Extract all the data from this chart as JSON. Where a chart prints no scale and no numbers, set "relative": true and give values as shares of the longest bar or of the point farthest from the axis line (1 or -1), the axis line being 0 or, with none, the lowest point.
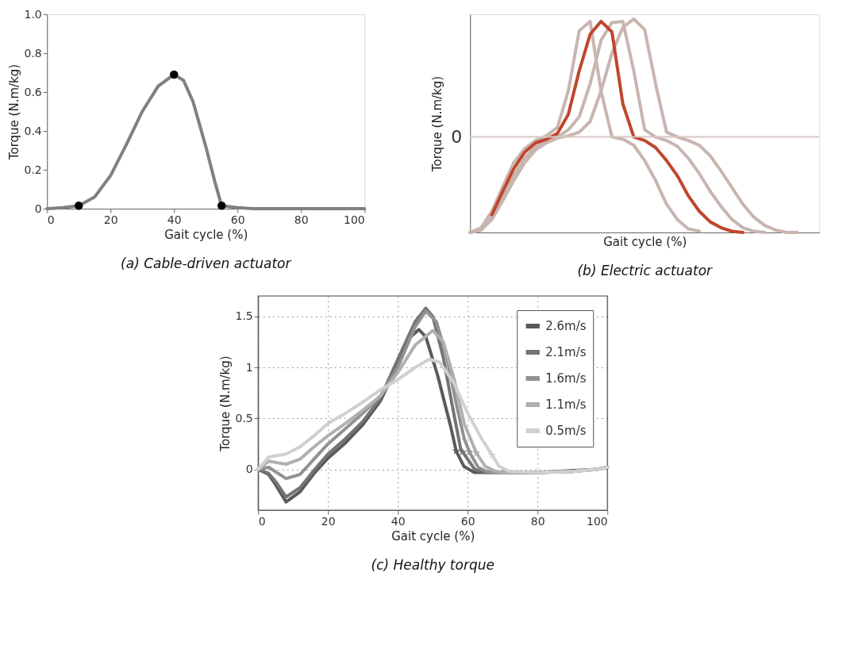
{
  "chart_data": [
    {
      "type": "line",
      "title": "(a) Cable-driven actuator",
      "xlabel": "Gait cycle (%)",
      "ylabel": "Torque (N.m/kg)",
      "xlim": [
        0,
        100
      ],
      "ylim": [
        0,
        1.0
      ],
      "xticks": [
        0,
        20,
        40,
        60,
        80,
        100
      ],
      "yticks": [
        0,
        0.2,
        0.4,
        0.6,
        0.8,
        {
          "value": 1.0,
          "label": "1.0"
        }
      ],
      "series": [
        {
          "color": "#808080",
          "x": [
            0,
            5,
            10,
            15,
            20,
            25,
            30,
            35,
            40,
            43,
            46,
            50,
            53,
            55,
            60,
            65,
            80,
            100
          ],
          "values": [
            0,
            0.005,
            0.015,
            0.06,
            0.17,
            0.33,
            0.5,
            0.63,
            0.69,
            0.66,
            0.55,
            0.32,
            0.13,
            0.015,
            0.005,
            0,
            0,
            0
          ]
        },
        {
          "type": "scatter",
          "marker": "circle",
          "color": "#000000",
          "x": [
            10,
            40,
            55
          ],
          "values": [
            0.015,
            0.69,
            0.015
          ]
        }
      ]
    },
    {
      "type": "line",
      "title": "(b) Electric actuator",
      "xlabel": "Gait cycle (%)",
      "ylabel": "Torque (N.m/kg)",
      "relative": true,
      "tick_labels": false,
      "categories": [
        null,
        null,
        null,
        null,
        null,
        null,
        null,
        null,
        null,
        null,
        null,
        null,
        null,
        null,
        null,
        null,
        null,
        null,
        null,
        null,
        null,
        null,
        null,
        null,
        null,
        null,
        null,
        null,
        null,
        null,
        null,
        null,
        null
      ],
      "ref_lines": [
        {
          "axis": "y",
          "value": 0,
          "label": "0",
          "color": "#d8c8c4"
        }
      ],
      "series": [
        {
          "color": "#c9b5b0",
          "values": [
            -0.81,
            -0.77,
            -0.63,
            -0.42,
            -0.22,
            -0.1,
            -0.03,
            0.01,
            0.08,
            0.39,
            0.9,
            0.98,
            0.39,
            0.0,
            -0.02,
            -0.07,
            -0.2,
            -0.37,
            -0.57,
            -0.7,
            -0.78,
            -0.8,
            null,
            null,
            null,
            null,
            null,
            null,
            null,
            null,
            null,
            null,
            null
          ]
        },
        {
          "color": "#c9b5b0",
          "values": [
            -0.81,
            -0.79,
            -0.68,
            -0.5,
            -0.33,
            -0.18,
            -0.08,
            -0.03,
            0.0,
            0.06,
            0.17,
            0.45,
            0.82,
            0.97,
            0.98,
            0.56,
            0.06,
            0.0,
            -0.03,
            -0.08,
            -0.18,
            -0.31,
            -0.46,
            -0.59,
            -0.7,
            -0.77,
            -0.8,
            -0.81,
            null,
            null,
            null,
            null,
            null
          ]
        },
        {
          "color": "#c9b5b0",
          "values": [
            -0.81,
            -0.79,
            -0.7,
            -0.54,
            -0.37,
            -0.22,
            -0.11,
            -0.05,
            -0.01,
            0.01,
            0.04,
            0.13,
            0.39,
            0.71,
            0.93,
            1.0,
            0.91,
            0.45,
            0.04,
            0.0,
            -0.03,
            -0.07,
            -0.16,
            -0.29,
            -0.43,
            -0.57,
            -0.68,
            -0.75,
            -0.79,
            -0.81,
            -0.81,
            null,
            null
          ]
        },
        {
          "color": "#c0462b",
          "values": [
            null,
            null,
            -0.66,
            -0.46,
            -0.27,
            -0.13,
            -0.05,
            -0.02,
            0.03,
            0.19,
            0.56,
            0.87,
            0.98,
            0.89,
            0.28,
            0.0,
            -0.03,
            -0.09,
            -0.2,
            -0.33,
            -0.5,
            -0.63,
            -0.72,
            -0.77,
            -0.8,
            -0.81,
            null,
            null,
            null,
            null,
            null,
            null,
            null
          ]
        }
      ]
    },
    {
      "type": "line",
      "title": "(c) Healthy torque",
      "xlabel": "Gait cycle (%)",
      "ylabel": "Torque (N.m/kg)",
      "xlim": [
        0,
        100
      ],
      "ylim": [
        -0.4,
        1.7
      ],
      "xticks": [
        0,
        20,
        40,
        60,
        80,
        100
      ],
      "yticks": [
        0,
        0.5,
        1,
        1.5
      ],
      "grid": true,
      "legend": "top right",
      "series": [
        {
          "name": "2.6m/s",
          "color": "#5a5a5a",
          "x": [
            0,
            3,
            5,
            8,
            12,
            16,
            20,
            25,
            30,
            35,
            40,
            43,
            46,
            48,
            51.4,
            55.2,
            56.7,
            58.9,
            61.9,
            70,
            80,
            97,
            100
          ],
          "values": [
            0,
            -0.05,
            -0.15,
            -0.32,
            -0.22,
            -0.04,
            0.11,
            0.26,
            0.44,
            0.67,
            1.03,
            1.28,
            1.37,
            1.3,
            0.92,
            0.41,
            0.18,
            0.03,
            -0.03,
            -0.03,
            -0.03,
            0,
            0.02
          ]
        },
        {
          "name": "2.1m/s",
          "color": "#747474",
          "x": [
            0,
            3,
            5,
            8,
            12,
            16,
            20,
            25,
            30,
            35,
            40,
            45,
            48,
            50,
            53,
            56,
            58,
            62,
            65,
            70,
            80,
            90,
            97,
            100
          ],
          "values": [
            0,
            -0.04,
            -0.12,
            -0.27,
            -0.18,
            -0.01,
            0.15,
            0.3,
            0.47,
            0.7,
            1.08,
            1.45,
            1.58,
            1.5,
            1.1,
            0.55,
            0.2,
            0.0,
            -0.03,
            -0.03,
            -0.03,
            -0.02,
            0,
            0.02
          ]
        },
        {
          "name": "1.6m/s",
          "color": "#929292",
          "x": [
            0,
            3,
            8,
            12,
            16,
            20,
            25,
            30,
            35,
            40,
            45,
            48,
            51,
            54,
            57,
            59,
            60.5,
            63,
            66,
            70,
            80,
            90,
            97,
            100
          ],
          "values": [
            0,
            0.02,
            -0.09,
            -0.05,
            0.1,
            0.25,
            0.4,
            0.55,
            0.72,
            1.0,
            1.4,
            1.55,
            1.45,
            1.1,
            0.6,
            0.3,
            0.17,
            0.02,
            -0.03,
            -0.03,
            -0.03,
            -0.02,
            0,
            0.02
          ]
        },
        {
          "name": "1.1m/s",
          "color": "#b0b0b0",
          "x": [
            0,
            3,
            8,
            12,
            16,
            20,
            25,
            30,
            35,
            40,
            45,
            50,
            53,
            56,
            59,
            62.5,
            65,
            68,
            70,
            80,
            90,
            97,
            100
          ],
          "values": [
            0,
            0.08,
            0.05,
            0.1,
            0.22,
            0.33,
            0.45,
            0.58,
            0.72,
            0.95,
            1.22,
            1.36,
            1.25,
            0.9,
            0.45,
            0.16,
            0.03,
            -0.02,
            -0.03,
            -0.03,
            -0.02,
            0,
            0.02
          ]
        },
        {
          "name": "0.5m/s",
          "color": "#d0d0d0",
          "x": [
            0,
            3,
            8,
            12,
            16,
            20,
            25,
            30,
            35,
            40,
            45,
            49,
            52,
            56,
            60,
            64,
            67,
            69,
            72,
            80,
            90,
            97,
            100
          ],
          "values": [
            0,
            0.12,
            0.15,
            0.22,
            0.33,
            0.45,
            0.55,
            0.66,
            0.78,
            0.88,
            1.0,
            1.08,
            1.05,
            0.85,
            0.55,
            0.3,
            0.14,
            0.03,
            -0.02,
            -0.03,
            -0.02,
            0,
            0.02
          ]
        },
        {
          "type": "scatter",
          "marker": "star",
          "color": "#808080",
          "colors": [
            "#5a5a5a",
            "#747474",
            "#929292",
            "#b0b0b0",
            "#d0d0d0"
          ],
          "x": [
            56.7,
            58.5,
            60.5,
            62.5,
            67
          ],
          "values": [
            0.18,
            0.17,
            0.17,
            0.16,
            0.14
          ]
        }
      ]
    }
  ]
}
